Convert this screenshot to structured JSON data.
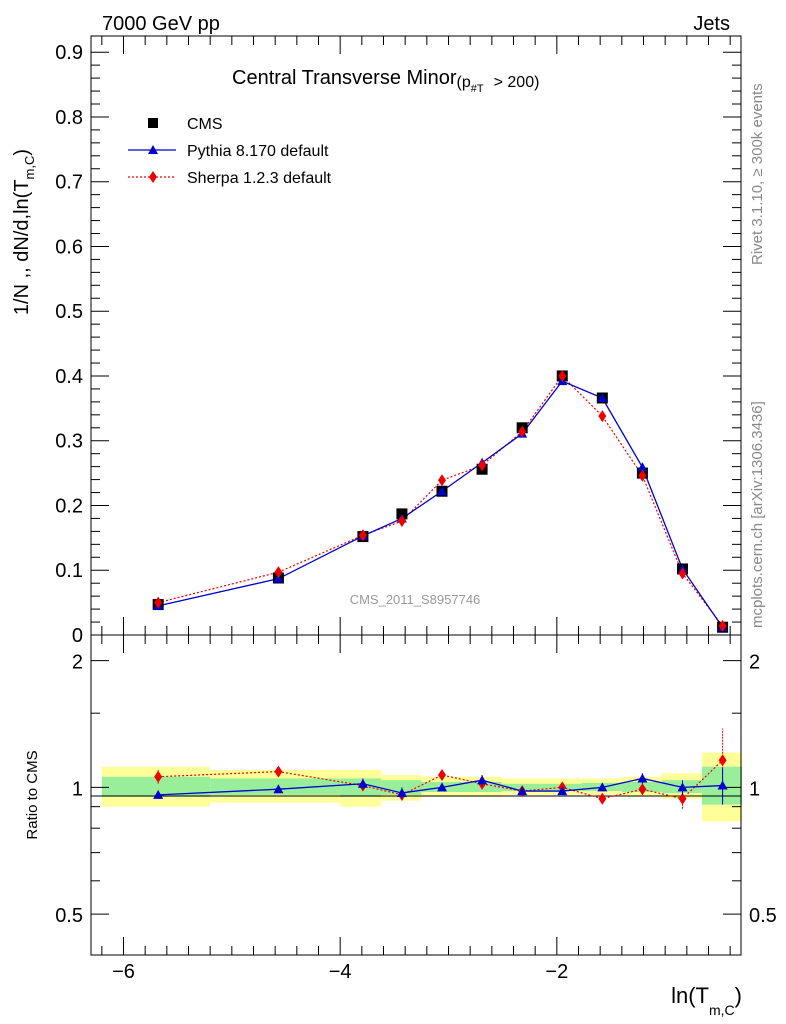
{
  "header": {
    "left": "7000 GeV pp",
    "right": "Jets"
  },
  "side_labels": {
    "rivet": "Rivet 3.1.10, ≥ 300k events",
    "mcplots": "mcplots.cern.ch [arXiv:1306.3436]"
  },
  "chart_data": [
    {
      "type": "line",
      "title": "Central Transverse Minor",
      "title_sub": "(p",
      "title_sub_index": "#T",
      "title_cut": "> 200)",
      "ylabel": "1/N ,, dN/d,ln(T",
      "ylabel_sub": "m,C",
      "ylabel_close": ")",
      "watermark": "CMS_2011_S8957746",
      "xlim": [
        -6.3,
        -0.3
      ],
      "ylim": [
        0,
        0.925
      ],
      "yticks": [
        0,
        0.1,
        0.2,
        0.3,
        0.4,
        0.5,
        0.6,
        0.7,
        0.8,
        0.9
      ],
      "ytick_labels": [
        "0",
        "0.1",
        "0.2",
        "0.3",
        "0.4",
        "0.5",
        "0.6",
        "0.7",
        "0.8",
        "0.9"
      ],
      "legend": [
        {
          "name": "CMS",
          "color": "#000000",
          "marker": "square"
        },
        {
          "name": "Pythia 8.170 default",
          "color": "#0000cc",
          "marker": "triangle"
        },
        {
          "name": "Sherpa 1.2.3 default",
          "color": "#ee0000",
          "marker": "diamond"
        }
      ],
      "series": [
        {
          "name": "CMS",
          "x": [
            -5.68,
            -4.57,
            -3.79,
            -3.43,
            -3.06,
            -2.69,
            -2.32,
            -1.95,
            -1.58,
            -1.21,
            -0.84,
            -0.47
          ],
          "y": [
            0.047,
            0.088,
            0.152,
            0.187,
            0.222,
            0.256,
            0.32,
            0.4,
            0.366,
            0.25,
            0.102,
            0.012
          ]
        },
        {
          "name": "Pythia 8.170 default",
          "x": [
            -5.68,
            -4.57,
            -3.79,
            -3.43,
            -3.06,
            -2.69,
            -2.32,
            -1.95,
            -1.58,
            -1.21,
            -0.84,
            -0.47
          ],
          "y": [
            0.045,
            0.087,
            0.153,
            0.18,
            0.222,
            0.266,
            0.311,
            0.392,
            0.366,
            0.259,
            0.102,
            0.012
          ]
        },
        {
          "name": "Sherpa 1.2.3 default",
          "x": [
            -5.68,
            -4.57,
            -3.79,
            -3.43,
            -3.06,
            -2.69,
            -2.32,
            -1.95,
            -1.58,
            -1.21,
            -0.84,
            -0.47
          ],
          "y": [
            0.05,
            0.097,
            0.154,
            0.176,
            0.239,
            0.262,
            0.314,
            0.4,
            0.338,
            0.246,
            0.095,
            0.014
          ]
        }
      ]
    },
    {
      "type": "line",
      "ylabel": "Ratio to CMS",
      "xlabel": "ln(T",
      "xlabel_sub": "m,C",
      "xlabel_close": ")",
      "xlim": [
        -6.3,
        -0.3
      ],
      "ylim": [
        0.4,
        2.3
      ],
      "log_scale_y": true,
      "yticks": [
        0.5,
        1,
        2
      ],
      "ytick_labels": [
        "0.5",
        "1",
        "2"
      ],
      "xticks": [
        -6,
        -4,
        -2
      ],
      "xtick_labels": [
        "−6",
        "−4",
        "−2"
      ],
      "bands": [
        {
          "x0": -6.2,
          "x1": -5.2,
          "yellow": [
            0.9,
            1.12
          ],
          "green": [
            0.95,
            1.06
          ]
        },
        {
          "x0": -5.2,
          "x1": -4.0,
          "yellow": [
            0.92,
            1.1
          ],
          "green": [
            0.96,
            1.05
          ]
        },
        {
          "x0": -4.0,
          "x1": -3.62,
          "yellow": [
            0.9,
            1.1
          ],
          "green": [
            0.95,
            1.05
          ]
        },
        {
          "x0": -3.62,
          "x1": -3.25,
          "yellow": [
            0.93,
            1.07
          ],
          "green": [
            0.96,
            1.04
          ]
        },
        {
          "x0": -3.25,
          "x1": -2.88,
          "yellow": [
            0.95,
            1.06
          ],
          "green": [
            0.975,
            1.03
          ]
        },
        {
          "x0": -2.88,
          "x1": -2.51,
          "yellow": [
            0.95,
            1.06
          ],
          "green": [
            0.975,
            1.03
          ]
        },
        {
          "x0": -2.51,
          "x1": -2.14,
          "yellow": [
            0.96,
            1.05
          ],
          "green": [
            0.98,
            1.02
          ]
        },
        {
          "x0": -2.14,
          "x1": -1.77,
          "yellow": [
            0.96,
            1.05
          ],
          "green": [
            0.98,
            1.02
          ]
        },
        {
          "x0": -1.77,
          "x1": -1.4,
          "yellow": [
            0.96,
            1.05
          ],
          "green": [
            0.98,
            1.025
          ]
        },
        {
          "x0": -1.4,
          "x1": -1.03,
          "yellow": [
            0.95,
            1.06
          ],
          "green": [
            0.975,
            1.03
          ]
        },
        {
          "x0": -1.03,
          "x1": -0.66,
          "yellow": [
            0.94,
            1.08
          ],
          "green": [
            0.97,
            1.04
          ]
        },
        {
          "x0": -0.66,
          "x1": -0.29,
          "yellow": [
            0.83,
            1.21
          ],
          "green": [
            0.91,
            1.12
          ]
        }
      ],
      "series": [
        {
          "name": "Pythia 8.170 default",
          "x": [
            -5.68,
            -4.57,
            -3.79,
            -3.43,
            -3.06,
            -2.69,
            -2.32,
            -1.95,
            -1.58,
            -1.21,
            -0.84,
            -0.47
          ],
          "y": [
            0.96,
            0.99,
            1.02,
            0.97,
            1.0,
            1.04,
            0.98,
            0.98,
            1.0,
            1.05,
            1.0,
            1.01
          ],
          "err": [
            0.02,
            0.02,
            0.03,
            0.03,
            0.02,
            0.03,
            0.02,
            0.02,
            0.02,
            0.03,
            0.04,
            0.1
          ]
        },
        {
          "name": "Sherpa 1.2.3 default",
          "x": [
            -5.68,
            -4.57,
            -3.79,
            -3.43,
            -3.06,
            -2.69,
            -2.32,
            -1.95,
            -1.58,
            -1.21,
            -0.84,
            -0.47
          ],
          "y": [
            1.06,
            1.09,
            1.01,
            0.96,
            1.07,
            1.02,
            0.98,
            1.0,
            0.94,
            0.99,
            0.94,
            1.16
          ],
          "err": [
            0.04,
            0.03,
            0.03,
            0.03,
            0.03,
            0.03,
            0.02,
            0.02,
            0.02,
            0.03,
            0.05,
            0.22
          ]
        }
      ]
    }
  ]
}
